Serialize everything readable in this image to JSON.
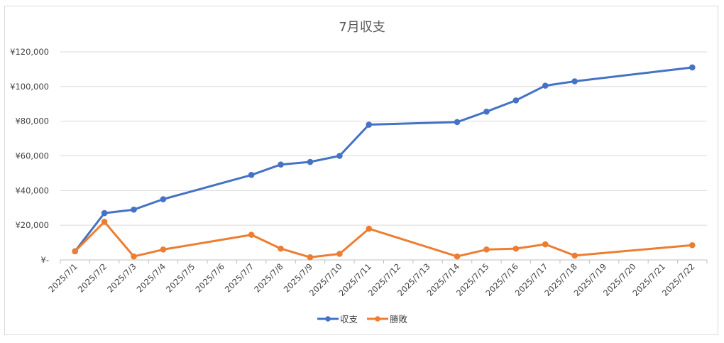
{
  "chart_data": {
    "type": "line",
    "title": "7月収支",
    "categories": [
      "2025/7/1",
      "2025/7/2",
      "2025/7/3",
      "2025/7/4",
      "2025/7/5",
      "2025/7/6",
      "2025/7/7",
      "2025/7/8",
      "2025/7/9",
      "2025/7/10",
      "2025/7/11",
      "2025/7/12",
      "2025/7/13",
      "2025/7/14",
      "2025/7/15",
      "2025/7/16",
      "2025/7/17",
      "2025/7/18",
      "2025/7/19",
      "2025/7/20",
      "2025/7/21",
      "2025/7/22"
    ],
    "y_tick_labels": [
      "¥-",
      "¥20,000",
      "¥40,000",
      "¥60,000",
      "¥80,000",
      "¥100,000",
      "¥120,000"
    ],
    "ylim": [
      0,
      120000
    ],
    "grid": true,
    "legend_position": "bottom",
    "series": [
      {
        "name": "収支",
        "color": "#4472C4",
        "values": [
          5000,
          27000,
          29000,
          35000,
          null,
          null,
          49000,
          55000,
          56500,
          60000,
          78000,
          null,
          null,
          79500,
          85500,
          92000,
          100500,
          103000,
          null,
          null,
          null,
          111000
        ]
      },
      {
        "name": "勝敗",
        "color": "#ED7D31",
        "values": [
          5000,
          22000,
          2000,
          6000,
          null,
          null,
          14500,
          6500,
          1500,
          3500,
          18000,
          null,
          null,
          2000,
          6000,
          6500,
          9000,
          2500,
          null,
          null,
          null,
          8500
        ]
      }
    ]
  }
}
